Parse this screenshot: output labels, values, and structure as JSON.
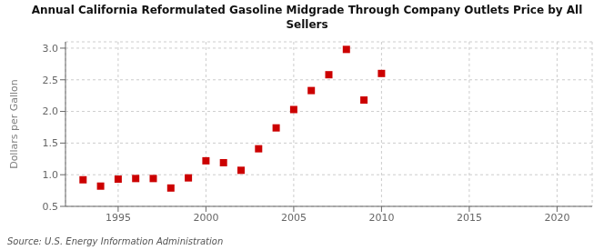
{
  "chart_data": {
    "type": "scatter",
    "title": "Annual California Reformulated Gasoline Midgrade Through Company Outlets Price by All\nSellers",
    "ylabel": "Dollars per Gallon",
    "annotations": [
      "Source: U.S. Energy Information Administration"
    ],
    "x": [
      1993,
      1994,
      1995,
      1996,
      1997,
      1998,
      1999,
      2000,
      2001,
      2002,
      2003,
      2004,
      2005,
      2006,
      2007,
      2008,
      2009,
      2010
    ],
    "values": [
      0.92,
      0.82,
      0.93,
      0.94,
      0.94,
      0.79,
      0.95,
      1.22,
      1.19,
      1.07,
      1.41,
      1.74,
      2.03,
      2.33,
      2.58,
      2.98,
      2.18,
      2.6
    ],
    "color": "#cc0000",
    "marker": "square",
    "xlim": [
      1992,
      2022
    ],
    "ylim": [
      0.5,
      3.1
    ],
    "xticks": [
      1995,
      2000,
      2005,
      2010,
      2015,
      2020
    ],
    "yticks": [
      0.5,
      {
        "value": 1.0,
        "label": "1.0"
      },
      1.5,
      {
        "value": 2.0,
        "label": "2.0"
      },
      2.5,
      {
        "value": 3.0,
        "label": "3.0"
      }
    ],
    "grid": true
  }
}
